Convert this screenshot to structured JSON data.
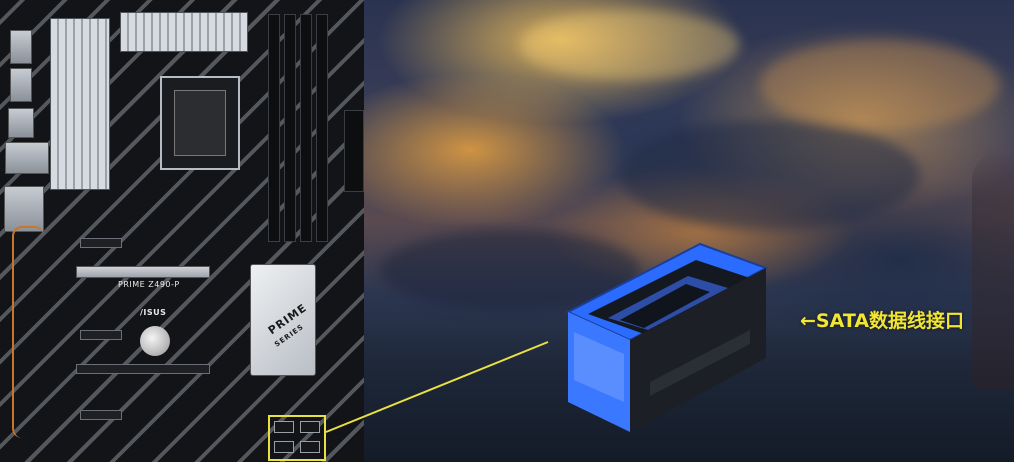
{
  "board": {
    "model_label": "PRIME Z490-P",
    "brand_label": "/ISUS",
    "chipset_label": "PRIME",
    "chipset_sublabel": "SERIES"
  },
  "callout": {
    "caption": "←SATA数据线接口",
    "caption_color": "#f2e630",
    "highlight_color": "#e9e043",
    "connector_color": "#2b6cff"
  },
  "icons": {
    "motherboard": "motherboard-photo",
    "connector": "sata-data-port-closeup"
  }
}
